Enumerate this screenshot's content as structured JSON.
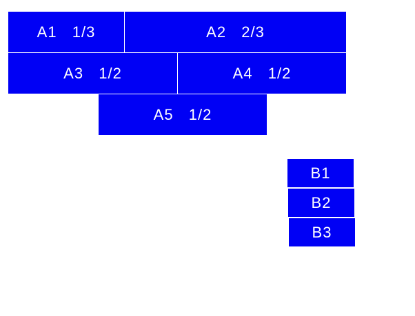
{
  "group_a": [
    {
      "label": "A1  1/3"
    },
    {
      "label": "A2  2/3"
    },
    {
      "label": "A3  1/2"
    },
    {
      "label": "A4  1/2"
    },
    {
      "label": "A5  1/2"
    }
  ],
  "group_b": [
    {
      "label": "B1"
    },
    {
      "label": "B2"
    },
    {
      "label": "B3"
    }
  ],
  "colors": {
    "box": "#0000f5",
    "text": "#ffffff"
  }
}
